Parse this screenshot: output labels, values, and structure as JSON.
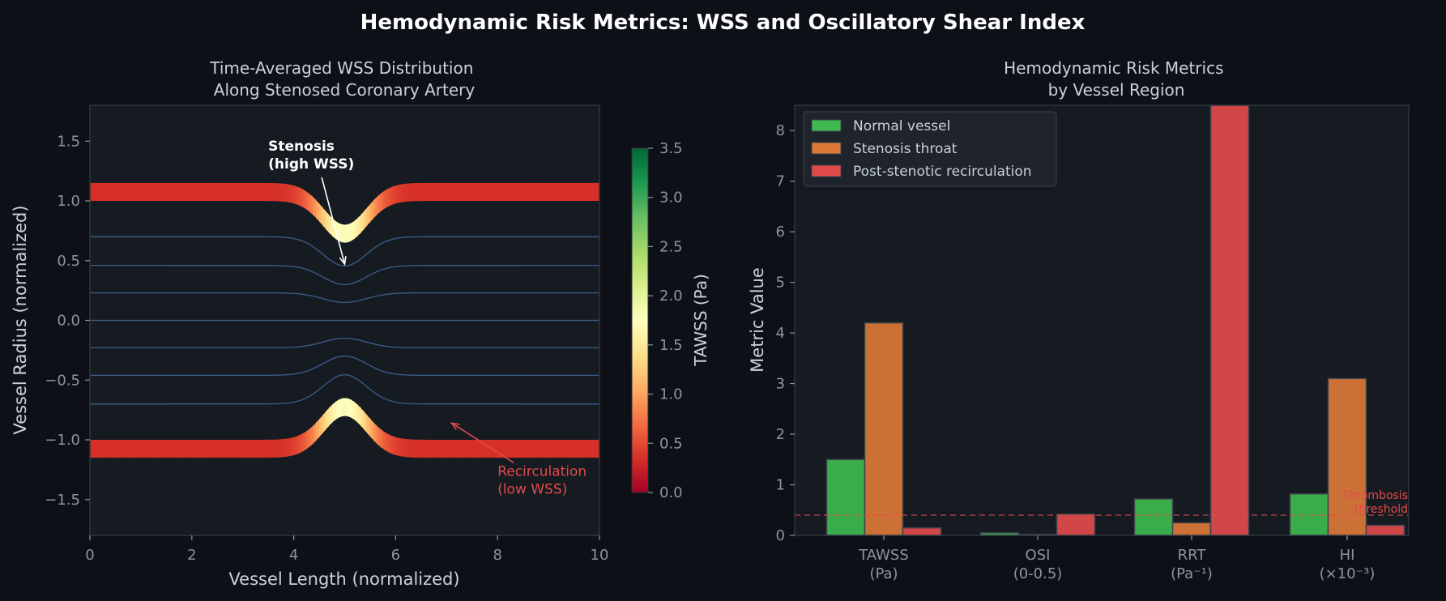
{
  "figure": {
    "title": "Hemodynamic Risk Metrics: WSS and Oscillatory Shear Index"
  },
  "colors": {
    "background": "#0d1117",
    "panel": "#161b22",
    "axis": "#30363d",
    "text": "#c9d1d9",
    "tick": "#8b949e",
    "streamline": "#3a5f8a",
    "normal": "#3fb950",
    "throat": "#db7837",
    "post": "#e24a4a"
  },
  "chart_data": [
    {
      "type": "line",
      "title": "Time-Averaged WSS Distribution\nAlong Stenosed Coronary Artery",
      "xlabel": "Vessel Length (normalized)",
      "ylabel": "Vessel Radius (normalized)",
      "xlim": [
        0,
        10
      ],
      "ylim": [
        -1.8,
        1.8
      ],
      "xticks": [
        0,
        2,
        4,
        6,
        8,
        10
      ],
      "yticks": [
        -1.5,
        -1.0,
        -0.5,
        0.0,
        0.5,
        1.0,
        1.5
      ],
      "wall": {
        "radius_healthy": 1.0,
        "radius_throat": 0.65,
        "stenosis_center": 5.0,
        "wall_thickness": 0.15
      },
      "streamlines_y0": [
        0.7,
        0.46,
        0.23,
        0.0,
        -0.23,
        -0.46,
        -0.7
      ],
      "colorbar": {
        "label": "TAWSS (Pa)",
        "ticks": [
          0.0,
          0.5,
          1.0,
          1.5,
          2.0,
          2.5,
          3.0,
          3.5
        ],
        "range": [
          0,
          3.5
        ],
        "colormap": "RdYlGn"
      },
      "annotations": [
        {
          "lines": [
            "Stenosis",
            "(high WSS)"
          ],
          "text_x": 3.5,
          "text_y": 1.42,
          "arrow_x": 5.0,
          "arrow_y": 0.47,
          "bold": true
        },
        {
          "lines": [
            "Recirculation",
            "(low WSS)"
          ],
          "text_x": 8.0,
          "text_y": -1.3,
          "arrow_x": 7.1,
          "arrow_y": -0.86,
          "bold": false
        }
      ]
    },
    {
      "type": "bar",
      "title": "Hemodynamic Risk Metrics\nby Vessel Region",
      "ylabel": "Metric Value",
      "categories": [
        "TAWSS\n(Pa)",
        "OSI\n(0-0.5)",
        "RRT\n(Pa⁻¹)",
        "HI\n(×10⁻³)"
      ],
      "ylim": [
        0,
        8.5
      ],
      "yticks": [
        0,
        1,
        2,
        3,
        4,
        5,
        6,
        7,
        8
      ],
      "series": [
        {
          "name": "Normal vessel",
          "values": [
            1.5,
            0.05,
            0.72,
            0.82
          ]
        },
        {
          "name": "Stenosis throat",
          "values": [
            4.2,
            0.02,
            0.25,
            3.1
          ]
        },
        {
          "name": "Post-stenotic recirculation",
          "values": [
            0.15,
            0.42,
            8.5,
            0.2
          ]
        }
      ],
      "threshold": {
        "value": 0.4,
        "label": "Thrombosis\nthreshold"
      },
      "legend": "top-left"
    }
  ]
}
